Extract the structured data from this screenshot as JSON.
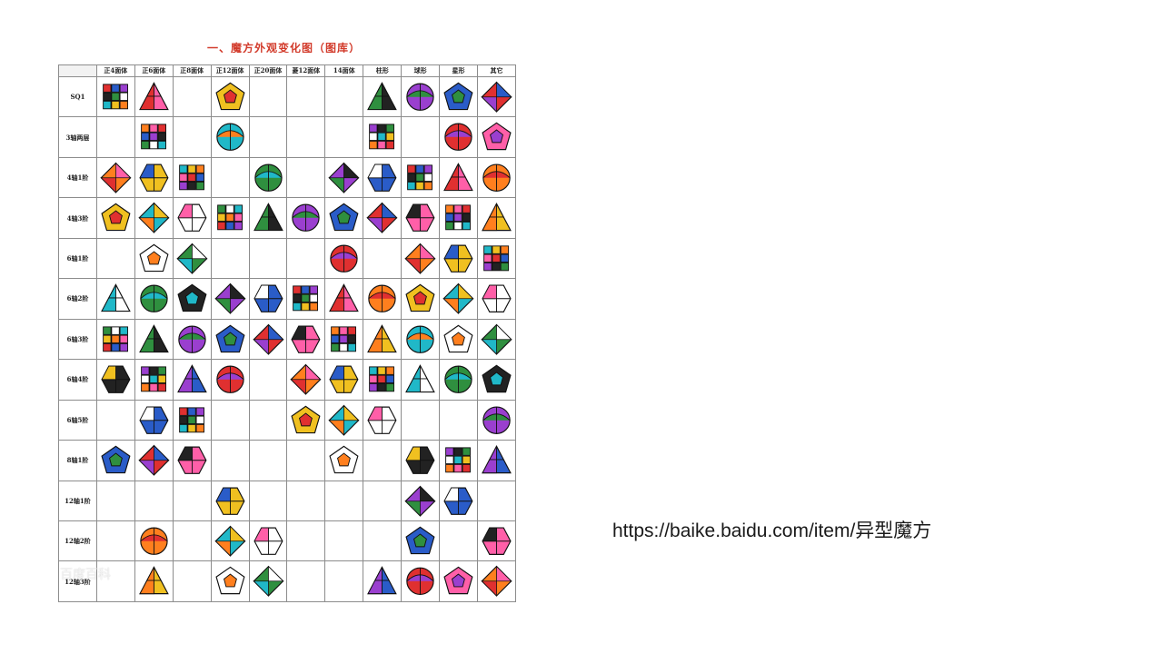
{
  "slide": {
    "title": "一、魔方外观变化图（图库）",
    "url_text": "https://baike.baidu.com/item/异型魔方",
    "watermark": "百度百科"
  },
  "table": {
    "columns": [
      "正4面体",
      "正6面体",
      "正8面体",
      "正12面体",
      "正20面体",
      "菱12面体",
      "14面体",
      "柱形",
      "球形",
      "星形",
      "其它"
    ],
    "rows": [
      {
        "label": "SQ1",
        "cells": [
          1,
          1,
          0,
          1,
          0,
          0,
          0,
          1,
          1,
          1,
          1
        ]
      },
      {
        "label": "3轴两层",
        "cells": [
          0,
          1,
          0,
          1,
          0,
          0,
          0,
          1,
          0,
          1,
          1
        ]
      },
      {
        "label": "4轴1阶",
        "cells": [
          1,
          1,
          1,
          0,
          1,
          0,
          1,
          1,
          1,
          1,
          1
        ]
      },
      {
        "label": "4轴3阶",
        "cells": [
          1,
          1,
          1,
          1,
          1,
          1,
          1,
          1,
          1,
          1,
          1
        ]
      },
      {
        "label": "6轴1阶",
        "cells": [
          0,
          1,
          1,
          0,
          0,
          0,
          1,
          0,
          1,
          1,
          1
        ]
      },
      {
        "label": "6轴2阶",
        "cells": [
          1,
          1,
          1,
          1,
          1,
          1,
          1,
          1,
          1,
          1,
          1
        ]
      },
      {
        "label": "6轴3阶",
        "cells": [
          1,
          1,
          1,
          1,
          1,
          1,
          1,
          1,
          1,
          1,
          1
        ]
      },
      {
        "label": "6轴4阶",
        "cells": [
          1,
          1,
          1,
          1,
          0,
          1,
          1,
          1,
          1,
          1,
          1
        ]
      },
      {
        "label": "6轴5阶",
        "cells": [
          0,
          1,
          1,
          0,
          0,
          1,
          1,
          1,
          0,
          0,
          1
        ]
      },
      {
        "label": "8轴1阶",
        "cells": [
          1,
          1,
          1,
          0,
          0,
          0,
          1,
          0,
          1,
          1,
          1
        ]
      },
      {
        "label": "12轴1阶",
        "cells": [
          0,
          0,
          0,
          1,
          0,
          0,
          0,
          0,
          1,
          1,
          0
        ]
      },
      {
        "label": "12轴2阶",
        "cells": [
          0,
          1,
          0,
          1,
          1,
          0,
          0,
          0,
          1,
          0,
          1
        ]
      },
      {
        "label": "12轴3阶",
        "cells": [
          0,
          1,
          0,
          1,
          1,
          0,
          0,
          1,
          1,
          1,
          1
        ]
      }
    ]
  }
}
